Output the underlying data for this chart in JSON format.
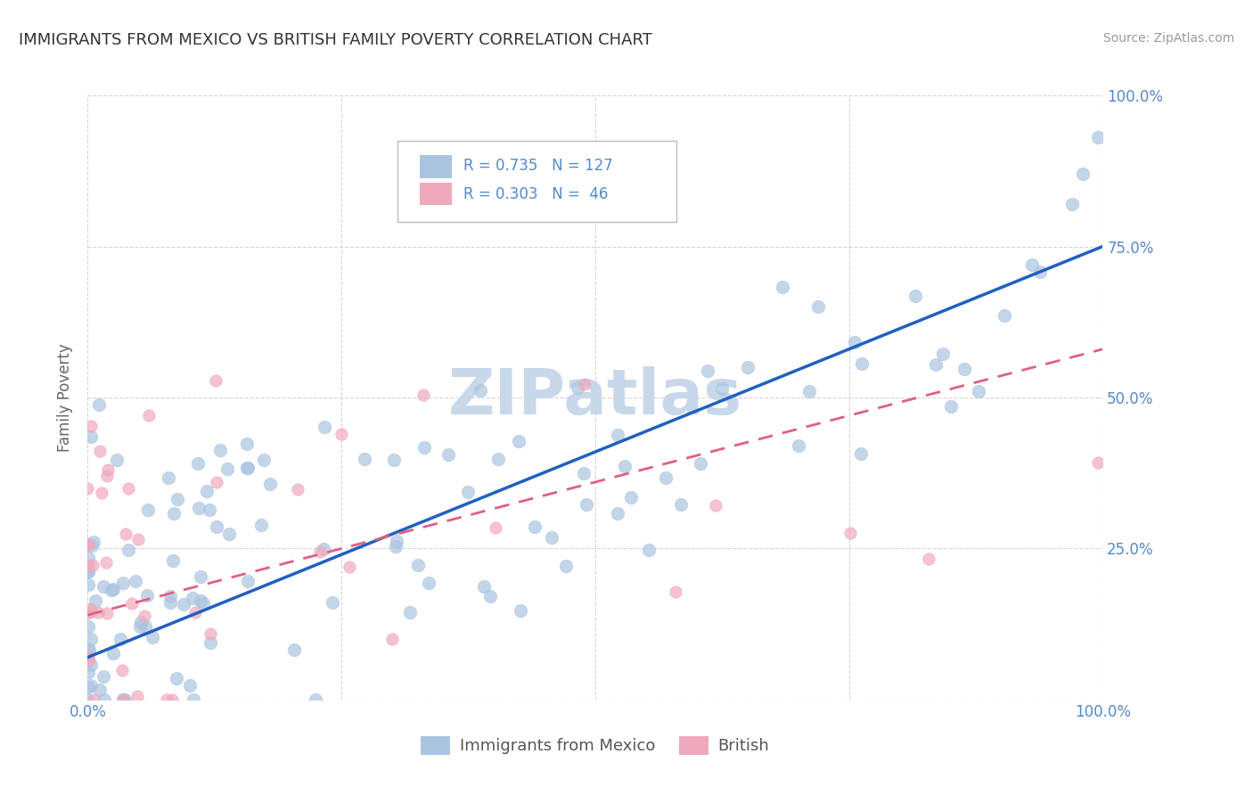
{
  "title": "IMMIGRANTS FROM MEXICO VS BRITISH FAMILY POVERTY CORRELATION CHART",
  "source": "Source: ZipAtlas.com",
  "ylabel": "Family Poverty",
  "legend_label1": "Immigrants from Mexico",
  "legend_label2": "British",
  "r1": 0.735,
  "n1": 127,
  "r2": 0.303,
  "n2": 46,
  "color1": "#aac4e0",
  "color2": "#f0a8bc",
  "line_color1": "#2060c0",
  "line_color2": "#e06080",
  "axis_label_color": "#5588cc",
  "watermark_color": "#c8d8ea",
  "background_color": "#ffffff",
  "grid_color": "#cccccc",
  "title_color": "#333333",
  "xlim": [
    0.0,
    1.0
  ],
  "ylim": [
    0.0,
    1.0
  ],
  "line1_x0": 0.0,
  "line1_y0": 0.07,
  "line1_x1": 1.0,
  "line1_y1": 0.75,
  "line2_x0": 0.0,
  "line2_y0": 0.14,
  "line2_x1": 1.0,
  "line2_y1": 0.58
}
